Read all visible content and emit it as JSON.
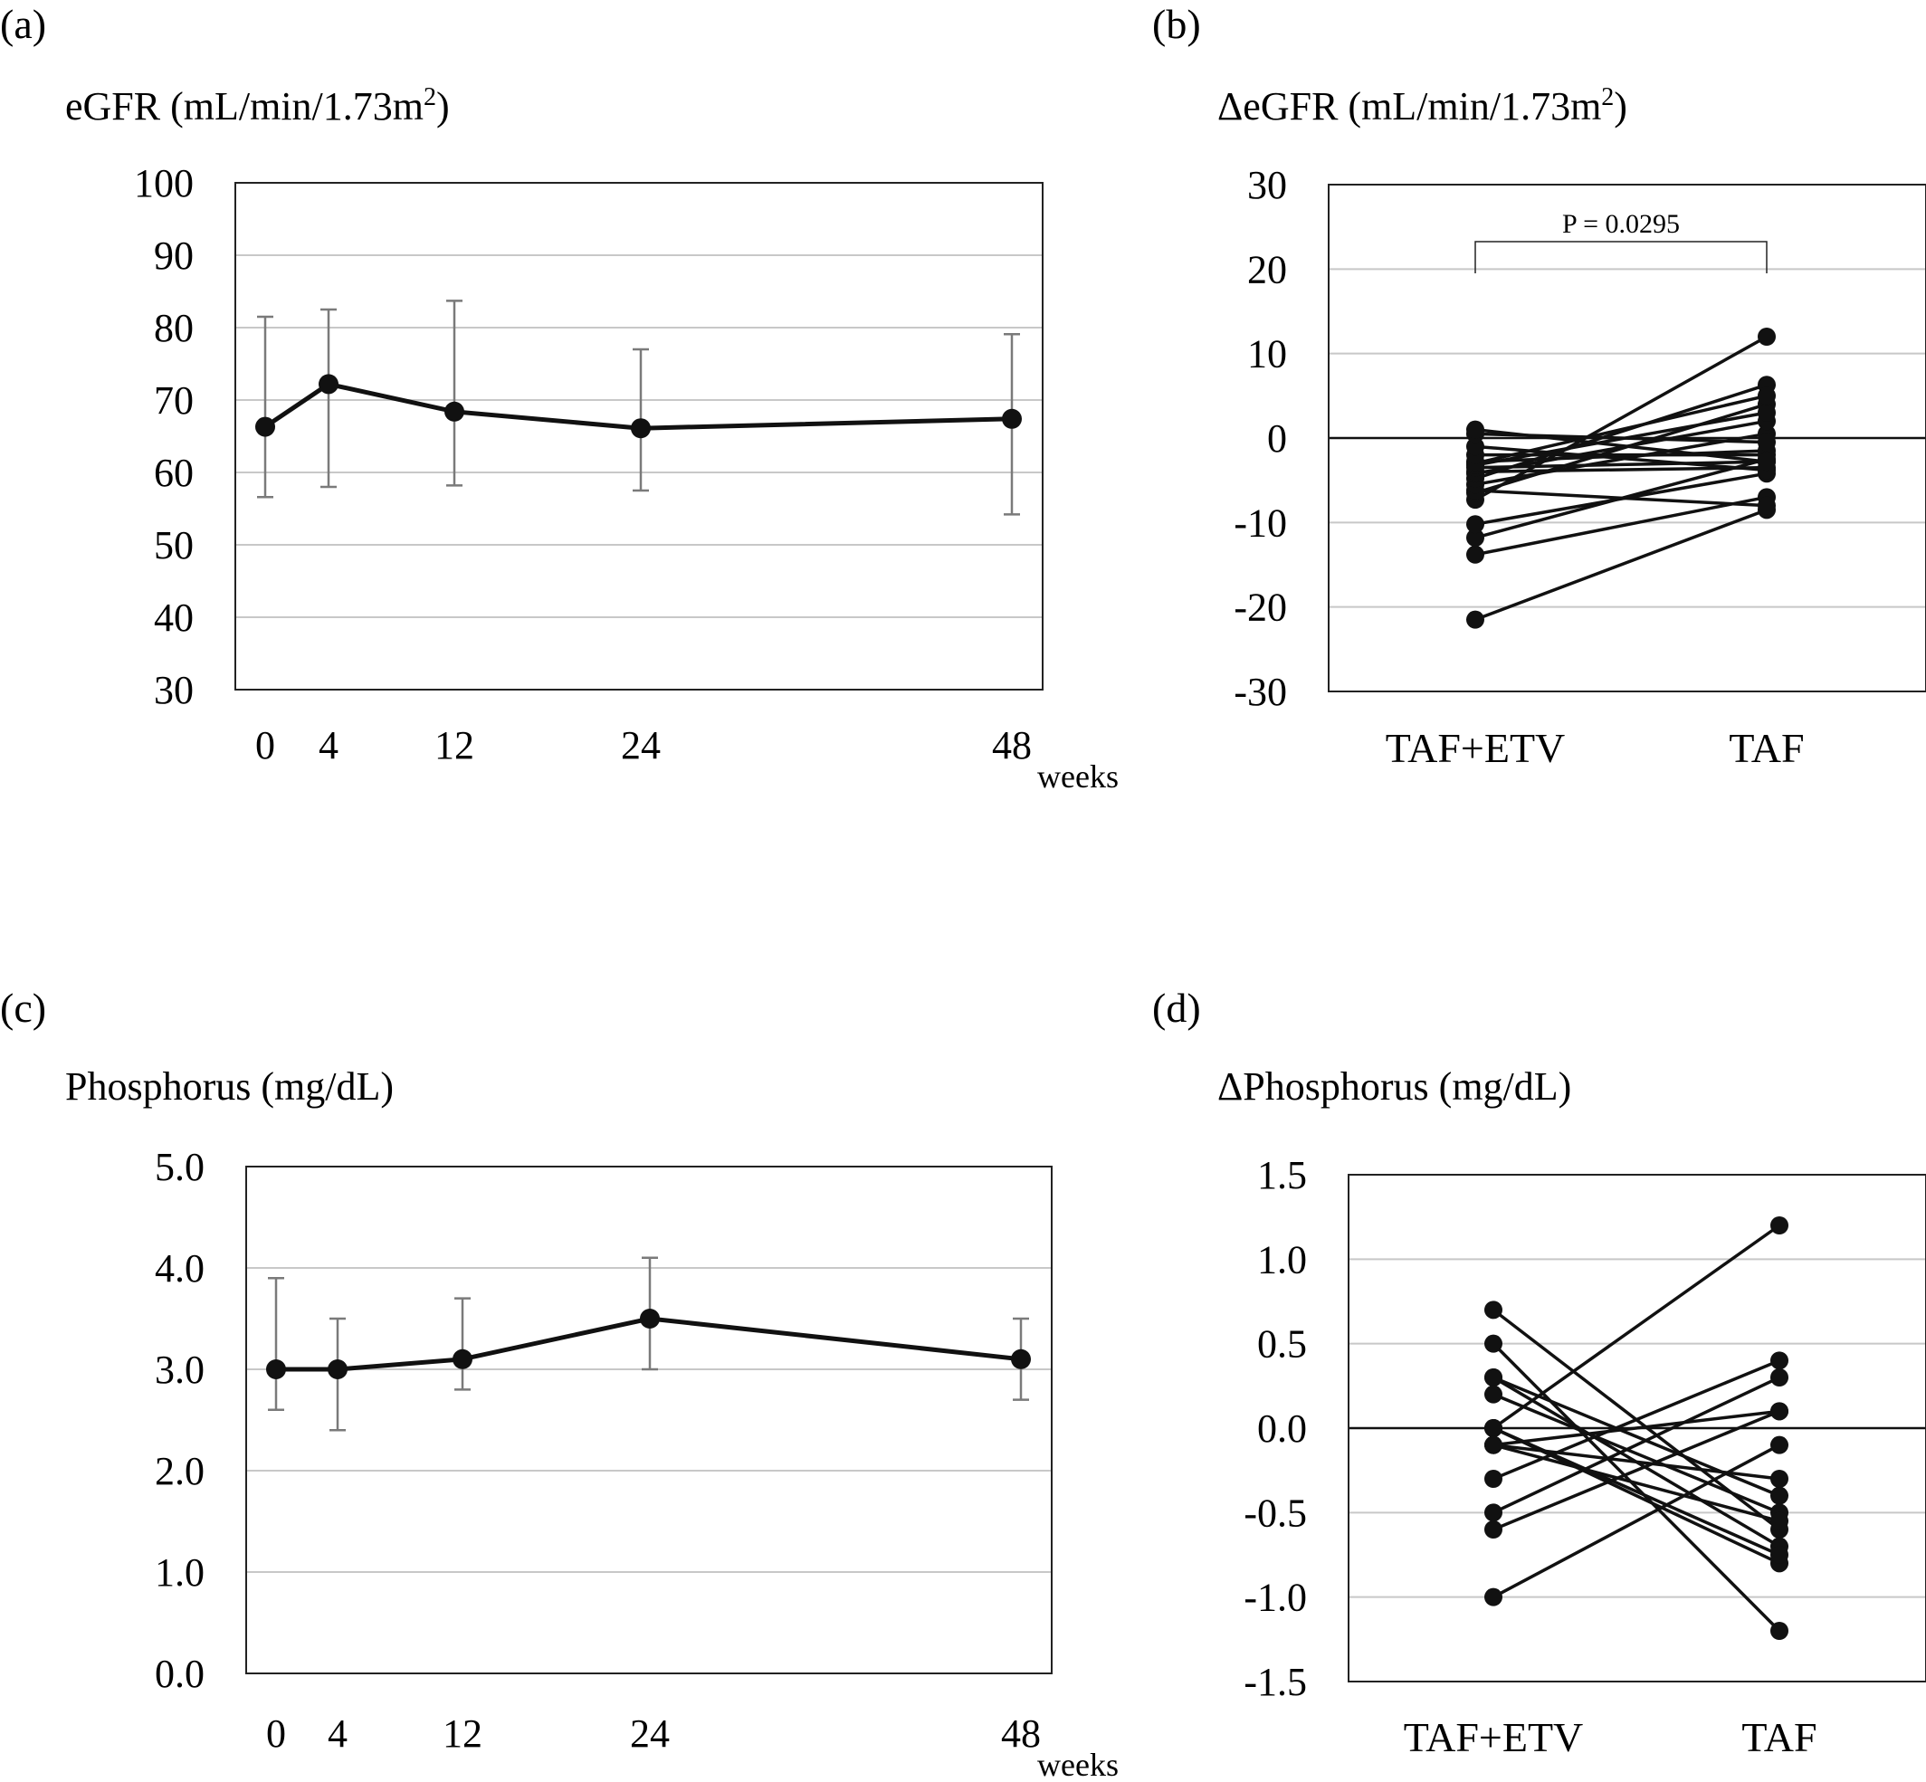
{
  "colors": {
    "line": "#111111",
    "grid": "#c8c8c8",
    "errorbar": "#7a7a7a",
    "frame": "#222222"
  },
  "panels": {
    "a": {
      "label": "(a)",
      "ylabel": "eGFR (mL/min/1.73m",
      "ylabel_sup": "2",
      "ylabel_end": ")",
      "xunit": "weeks"
    },
    "b": {
      "label": "(b)",
      "ylabel": "ΔeGFR (mL/min/1.73m",
      "ylabel_sup": "2",
      "ylabel_end": ")",
      "pvalue": "P = 0.0295"
    },
    "c": {
      "label": "(c)",
      "ylabel": "Phosphorus (mg/dL)",
      "xunit": "weeks"
    },
    "d": {
      "label": "(d)",
      "ylabel": "ΔPhosphorus (mg/dL)"
    }
  },
  "chart_data": [
    {
      "id": "a",
      "type": "line",
      "ylabel": "eGFR (mL/min/1.73m2)",
      "xlabel": "weeks",
      "x": [
        0,
        4,
        12,
        24,
        48
      ],
      "values": [
        66.3,
        72.2,
        68.4,
        66.1,
        67.4
      ],
      "err_low": [
        56.6,
        58.0,
        58.2,
        57.5,
        54.2
      ],
      "err_high": [
        81.5,
        82.5,
        83.7,
        77.0,
        79.1
      ],
      "ylim": [
        30,
        100
      ],
      "yticks": [
        "100",
        "90",
        "80",
        "70",
        "60",
        "50",
        "40",
        "30"
      ],
      "xticks": [
        "0",
        "4",
        "12",
        "24",
        "48"
      ],
      "grid": true
    },
    {
      "id": "b",
      "type": "line",
      "ylabel": "ΔeGFR (mL/min/1.73m2)",
      "categories": [
        "TAF+ETV",
        "TAF"
      ],
      "ylim": [
        -30,
        30
      ],
      "yticks": [
        "30",
        "20",
        "10",
        "0",
        "-10",
        "-20",
        "-30"
      ],
      "annotation": "P = 0.0295",
      "grid": true,
      "pairs": [
        [
          -21.5,
          -8.5
        ],
        [
          -13.8,
          -7.0
        ],
        [
          -11.8,
          -2.5
        ],
        [
          -10.2,
          -4.2
        ],
        [
          -7.3,
          12.0
        ],
        [
          -6.5,
          4.0
        ],
        [
          -6.2,
          -8.0
        ],
        [
          -5.5,
          0.5
        ],
        [
          -4.8,
          6.3
        ],
        [
          -4.2,
          2.0
        ],
        [
          -4.0,
          -3.5
        ],
        [
          -3.5,
          -2.8
        ],
        [
          -3.2,
          3.0
        ],
        [
          -3.0,
          5.0
        ],
        [
          -2.8,
          -1.5
        ],
        [
          -2.0,
          -2.0
        ],
        [
          -1.0,
          -3.8
        ],
        [
          0.5,
          -0.5
        ],
        [
          1.0,
          -2.8
        ]
      ]
    },
    {
      "id": "c",
      "type": "line",
      "ylabel": "Phosphorus (mg/dL)",
      "xlabel": "weeks",
      "x": [
        0,
        4,
        12,
        24,
        48
      ],
      "values": [
        3.0,
        3.0,
        3.1,
        3.5,
        3.1
      ],
      "err_low": [
        2.6,
        2.4,
        2.8,
        3.0,
        2.7
      ],
      "err_high": [
        3.9,
        3.5,
        3.7,
        4.1,
        3.5
      ],
      "ylim": [
        0,
        5
      ],
      "yticks": [
        "5.0",
        "4.0",
        "3.0",
        "2.0",
        "1.0",
        "0.0"
      ],
      "xticks": [
        "0",
        "4",
        "12",
        "24",
        "48"
      ],
      "grid": true
    },
    {
      "id": "d",
      "type": "line",
      "ylabel": "ΔPhosphorus (mg/dL)",
      "categories": [
        "TAF+ETV",
        "TAF"
      ],
      "ylim": [
        -1.5,
        1.5
      ],
      "yticks": [
        "1.5",
        "1.0",
        "0.5",
        "0.0",
        "-0.5",
        "-1.0",
        "-1.5"
      ],
      "grid": true,
      "pairs": [
        [
          0.7,
          -0.6
        ],
        [
          0.5,
          -1.2
        ],
        [
          0.3,
          -0.7
        ],
        [
          0.3,
          -0.4
        ],
        [
          0.2,
          -0.5
        ],
        [
          0.0,
          1.2
        ],
        [
          0.0,
          -0.8
        ],
        [
          0.0,
          -0.75
        ],
        [
          -0.1,
          -0.3
        ],
        [
          -0.1,
          0.1
        ],
        [
          -0.1,
          -0.55
        ],
        [
          -0.3,
          0.4
        ],
        [
          -0.5,
          0.3
        ],
        [
          -0.6,
          0.1
        ],
        [
          -1.0,
          -0.1
        ]
      ]
    }
  ]
}
